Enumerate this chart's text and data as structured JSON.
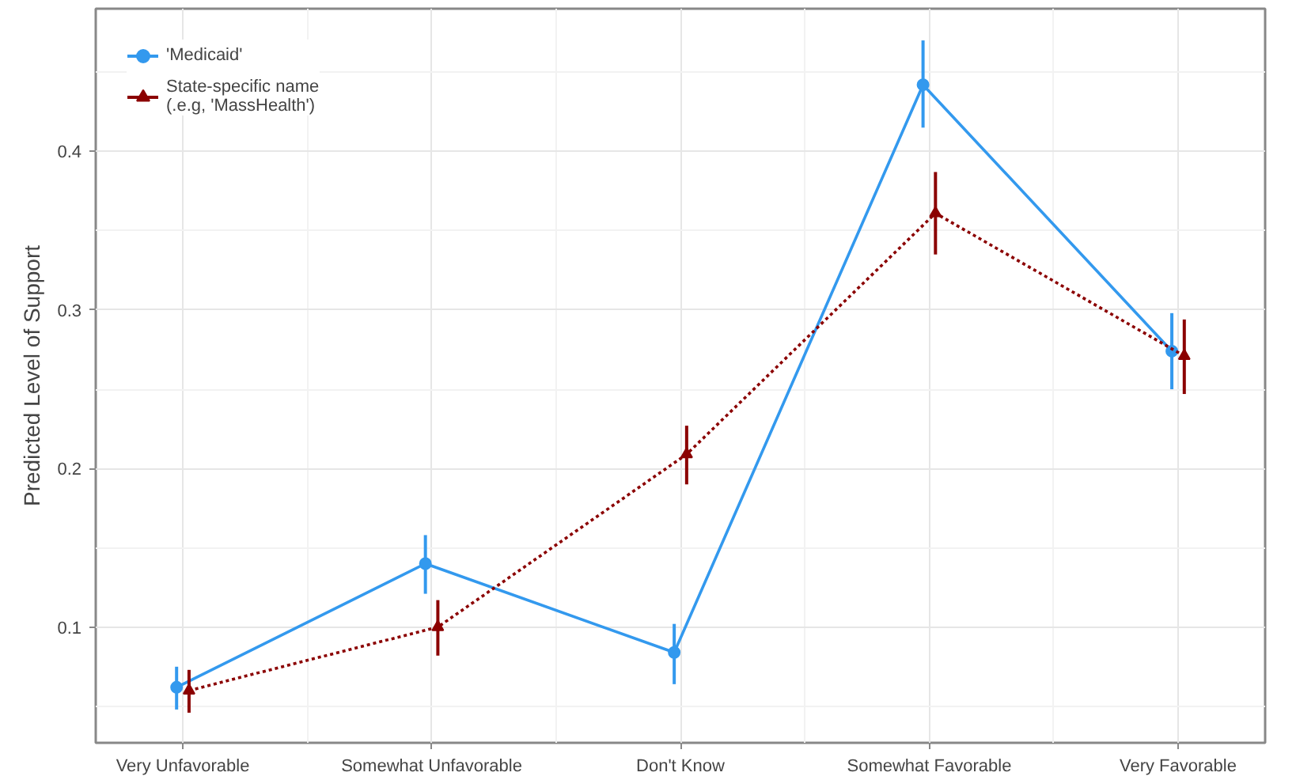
{
  "chart_data": {
    "type": "line",
    "ylabel": "Predicted Level of Support",
    "categories": [
      "Very Unfavorable",
      "Somewhat Unfavorable",
      "Don't Know",
      "Somewhat Favorable",
      "Very Favorable"
    ],
    "series": [
      {
        "name": "'Medicaid'",
        "color": "#3399ee",
        "marker": "circle",
        "line_style": "solid",
        "values": [
          0.062,
          0.14,
          0.084,
          0.442,
          0.274
        ],
        "errors": [
          [
            0.048,
            0.075
          ],
          [
            0.121,
            0.158
          ],
          [
            0.064,
            0.102
          ],
          [
            0.415,
            0.47
          ],
          [
            0.25,
            0.298
          ]
        ]
      },
      {
        "name": "State-specific name\n(.e.g, 'MassHealth')",
        "color": "#8b0000",
        "marker": "triangle",
        "line_style": "dotted",
        "values": [
          0.06,
          0.1,
          0.209,
          0.361,
          0.271
        ],
        "errors": [
          [
            0.046,
            0.073
          ],
          [
            0.082,
            0.117
          ],
          [
            0.19,
            0.227
          ],
          [
            0.335,
            0.387
          ],
          [
            0.247,
            0.294
          ]
        ]
      }
    ],
    "ylim": [
      0.027,
      0.49
    ],
    "yticks": [
      0.1,
      0.2,
      0.3,
      0.4
    ],
    "grid": true,
    "legend": "top left"
  }
}
